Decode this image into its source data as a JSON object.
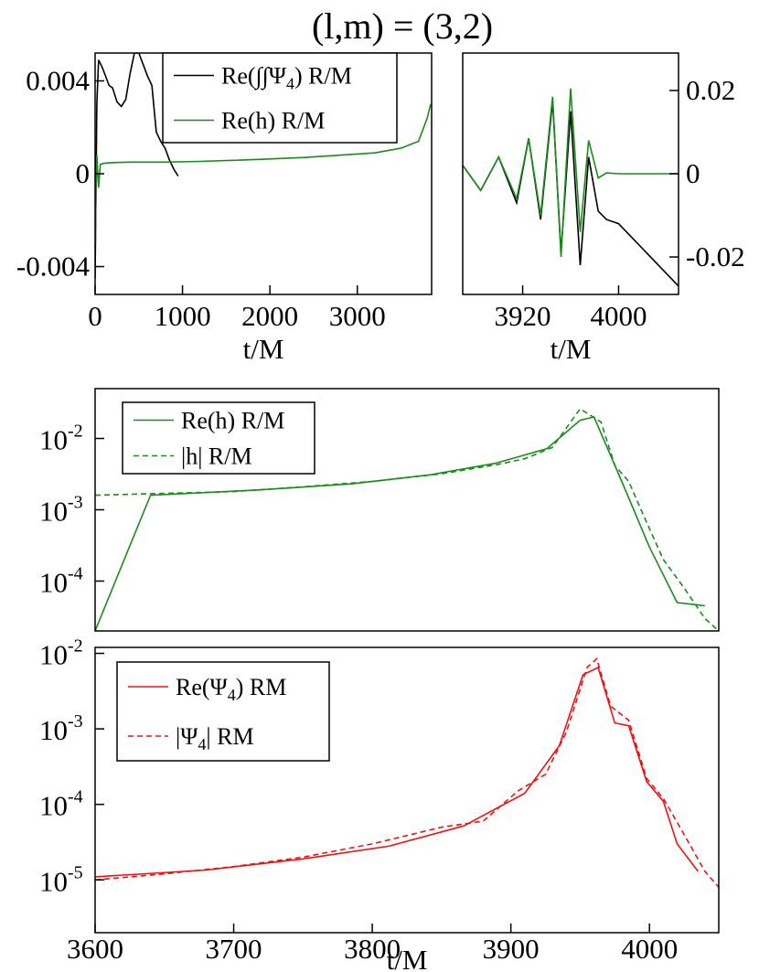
{
  "figure_title": "(l,m) = (3,2)",
  "colors": {
    "green": "#1a8c1a",
    "red": "#ee1111",
    "black": "#000000"
  },
  "chart_data": [
    {
      "id": "p1",
      "type": "line",
      "xlabel": "t/M",
      "ylabel": "",
      "xlim": [
        0,
        3850
      ],
      "ylim": [
        -0.0052,
        0.0052
      ],
      "xticks": [
        {
          "v": 0,
          "label": "0"
        },
        {
          "v": 1000,
          "label": "1000"
        },
        {
          "v": 2000,
          "label": "2000"
        },
        {
          "v": 3000,
          "label": "3000"
        }
      ],
      "yticks": [
        {
          "v": 0.004,
          "label": "0.004"
        },
        {
          "v": 0,
          "label": "0"
        },
        {
          "v": -0.004,
          "label": "-0.004"
        }
      ],
      "legend_position": "top-right",
      "series": [
        {
          "name": "Re(∫∫Ψ4) R/M",
          "label_parts": [
            "Re(∫∫Ψ",
            "4",
            ") R/M"
          ],
          "color": "#000000",
          "x": [
            0,
            20,
            40,
            80,
            120,
            160,
            200,
            250,
            300,
            350,
            400,
            450,
            500,
            550,
            600,
            650,
            700,
            750,
            800,
            850,
            900,
            950
          ],
          "y": [
            -0.0045,
            0.003,
            0.0049,
            0.0046,
            0.0042,
            0.0038,
            0.0037,
            0.0031,
            0.0029,
            0.0032,
            0.0043,
            0.0052,
            0.0052,
            0.0047,
            0.0042,
            0.0038,
            0.0018,
            0.0014,
            0.0011,
            0.0006,
            0.0002,
            -0.0001
          ]
        },
        {
          "name": "Re(h) R/M",
          "color": "#1a8c1a",
          "x": [
            0,
            20,
            40,
            60,
            100,
            200,
            400,
            800,
            1200,
            1600,
            2000,
            2400,
            2800,
            3200,
            3500,
            3700,
            3800,
            3840
          ],
          "y": [
            -0.003,
            0.0008,
            -0.0006,
            0.0004,
            0.00045,
            0.00048,
            0.0005,
            0.0005,
            0.00053,
            0.00058,
            0.00064,
            0.0007,
            0.0008,
            0.0009,
            0.0011,
            0.0014,
            0.0024,
            0.003
          ]
        }
      ]
    },
    {
      "id": "p2",
      "type": "line",
      "xlabel": "t/M",
      "ylabel": "",
      "xlim": [
        3870,
        4050
      ],
      "ylim": [
        -0.029,
        0.029
      ],
      "xticks": [
        {
          "v": 3920,
          "label": "3920"
        },
        {
          "v": 4000,
          "label": "4000"
        }
      ],
      "yticks": [
        {
          "v": 0.02,
          "label": "0.02"
        },
        {
          "v": 0,
          "label": "0"
        },
        {
          "v": -0.02,
          "label": "-0.02"
        }
      ],
      "legend_position": "none",
      "series": [
        {
          "name": "Re(∫∫Ψ4) R/M",
          "color": "#000000",
          "x": [
            3870,
            3885,
            3900,
            3915,
            3925,
            3935,
            3945,
            3952,
            3960,
            3968,
            3975,
            3983,
            3990,
            4000,
            4020,
            4050
          ],
          "y": [
            0.002,
            -0.004,
            0.004,
            -0.007,
            0.0085,
            -0.011,
            0.0175,
            -0.019,
            0.015,
            -0.022,
            0.004,
            -0.009,
            -0.011,
            -0.012,
            -0.018,
            -0.027
          ]
        },
        {
          "name": "Re(h) R/M",
          "color": "#1a8c1a",
          "x": [
            3870,
            3885,
            3900,
            3915,
            3925,
            3935,
            3945,
            3952,
            3960,
            3968,
            3975,
            3983,
            3990,
            4000,
            4020,
            4050
          ],
          "y": [
            0.002,
            -0.004,
            0.004,
            -0.006,
            0.0085,
            -0.01,
            0.0185,
            -0.02,
            0.0205,
            -0.014,
            0.008,
            -0.001,
            0.0002,
            0.0,
            0.0,
            0.0
          ]
        }
      ]
    },
    {
      "id": "p3",
      "type": "line",
      "log_y": true,
      "xlabel": "",
      "ylabel": "",
      "xlim": [
        3600,
        4050
      ],
      "ylim": [
        2e-05,
        0.05
      ],
      "yticks": [
        {
          "mant": "10",
          "exp": "-2",
          "v": 0.01
        },
        {
          "mant": "10",
          "exp": "-3",
          "v": 0.001
        },
        {
          "mant": "10",
          "exp": "-4",
          "v": 0.0001
        }
      ],
      "legend_position": "top-left",
      "series": [
        {
          "name": "Re(h) R/M",
          "color": "#1a8c1a",
          "style": "solid",
          "x": [
            3600,
            3640,
            3718,
            3784,
            3842,
            3889,
            3926,
            3950,
            3960,
            3980,
            4000,
            4020,
            4040
          ],
          "y": [
            2e-05,
            0.0016,
            0.0019,
            0.0023,
            0.0031,
            0.0045,
            0.0072,
            0.018,
            0.02,
            0.0025,
            0.0003,
            5e-05,
            4.5e-05
          ]
        },
        {
          "name": "|h| R/M",
          "color": "#1a8c1a",
          "style": "dashed",
          "x": [
            3600,
            3650,
            3700,
            3750,
            3800,
            3850,
            3890,
            3910,
            3930,
            3950,
            3965,
            3975,
            3985,
            3995,
            4010,
            4025,
            4040,
            4050
          ],
          "y": [
            0.0016,
            0.0017,
            0.0018,
            0.0021,
            0.0025,
            0.0032,
            0.0043,
            0.0052,
            0.0075,
            0.026,
            0.017,
            0.0042,
            0.0025,
            0.0009,
            0.0002,
            8e-05,
            3e-05,
            2e-05
          ]
        }
      ]
    },
    {
      "id": "p4",
      "type": "line",
      "log_y": true,
      "xlabel": "t/M",
      "ylabel": "",
      "xlim": [
        3600,
        4050
      ],
      "ylim": [
        2e-06,
        0.012
      ],
      "xticks": [
        {
          "v": 3600,
          "label": "3600"
        },
        {
          "v": 3700,
          "label": "3700"
        },
        {
          "v": 3800,
          "label": "3800"
        },
        {
          "v": 3900,
          "label": "3900"
        },
        {
          "v": 4000,
          "label": "4000"
        }
      ],
      "yticks": [
        {
          "mant": "10",
          "exp": "-2",
          "v": 0.01
        },
        {
          "mant": "10",
          "exp": "-3",
          "v": 0.001
        },
        {
          "mant": "10",
          "exp": "-4",
          "v": 0.0001
        },
        {
          "mant": "10",
          "exp": "-5",
          "v": 1e-05
        }
      ],
      "legend_position": "top-left",
      "series": [
        {
          "name": "Re(Ψ4) RM",
          "label_parts": [
            "Re(Ψ",
            "4",
            ") RM"
          ],
          "color": "#ee1111",
          "style": "solid",
          "x": [
            3600,
            3680,
            3750,
            3812,
            3866,
            3910,
            3935,
            3952,
            3963,
            3975,
            3985,
            3998,
            4010,
            4020,
            4035
          ],
          "y": [
            1.1e-05,
            1.35e-05,
            1.9e-05,
            2.8e-05,
            5.2e-05,
            0.00014,
            0.0006,
            0.0052,
            0.0065,
            0.0012,
            0.0011,
            0.0002,
            0.00011,
            3e-05,
            1.3e-05
          ]
        },
        {
          "name": "|Ψ4| RM",
          "label_parts": [
            "|Ψ",
            "4",
            "| RM"
          ],
          "color": "#ee1111",
          "style": "dashed",
          "x": [
            3600,
            3650,
            3700,
            3750,
            3800,
            3850,
            3880,
            3905,
            3925,
            3940,
            3955,
            3962,
            3972,
            3985,
            3998,
            4010,
            4025,
            4040,
            4050
          ],
          "y": [
            1e-05,
            1.2e-05,
            1.5e-05,
            2e-05,
            3e-05,
            5e-05,
            6e-05,
            0.00015,
            0.00025,
            0.0009,
            0.0065,
            0.0085,
            0.002,
            0.0013,
            0.00022,
            0.00012,
            4e-05,
            1.3e-05,
            8e-06
          ]
        }
      ]
    }
  ]
}
